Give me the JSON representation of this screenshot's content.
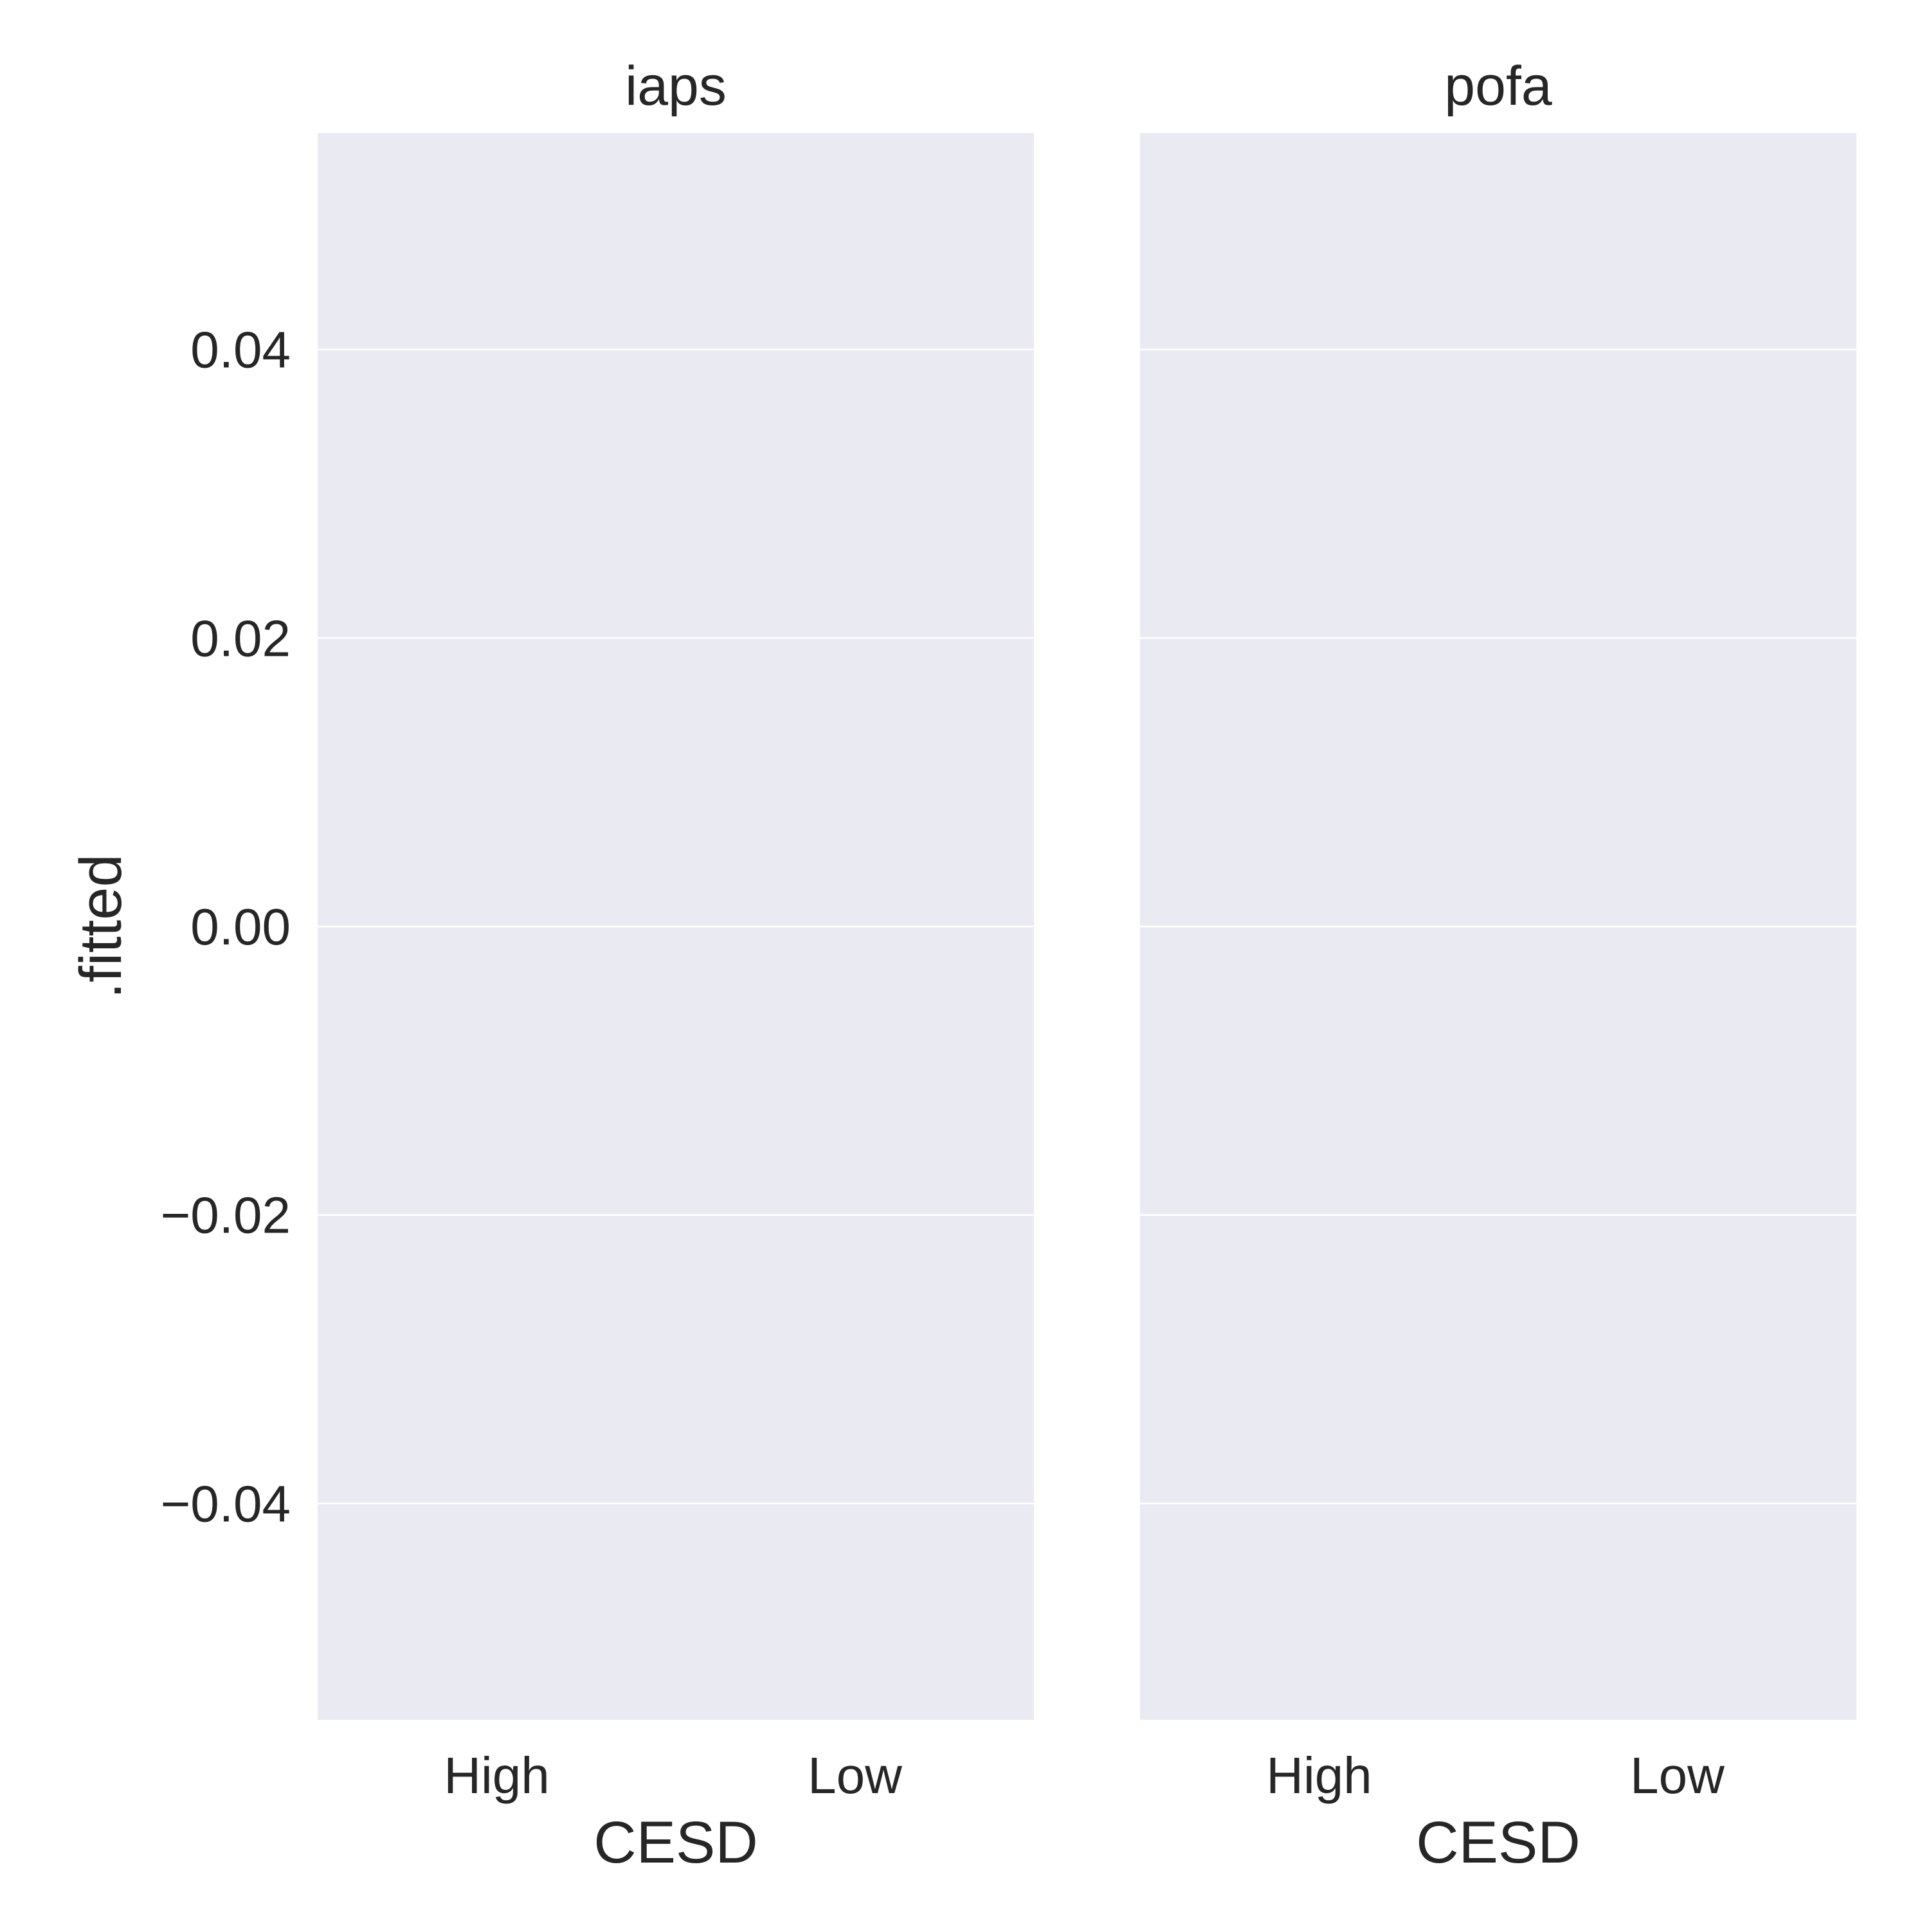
{
  "chart_data": {
    "type": "bar",
    "facet_variable": "",
    "x_variable": "CESD",
    "y_variable": ".fitted",
    "ylabel": ".fitted",
    "ylim": [
      -0.055,
      0.055
    ],
    "yticks": [
      0.04,
      0.02,
      0.0,
      -0.02,
      -0.04
    ],
    "ytick_labels": [
      "0.04",
      "0.02",
      "0.00",
      "−0.02",
      "−0.04"
    ],
    "grid": true,
    "colors": {
      "panel_background": "#eaeaf2",
      "gridline": "#ffffff",
      "text": "#262626"
    },
    "panels": [
      {
        "title": "iaps",
        "xlabel": "CESD",
        "categories": [
          "High",
          "Low"
        ],
        "values": [
          null,
          null
        ]
      },
      {
        "title": "pofa",
        "xlabel": "CESD",
        "categories": [
          "High",
          "Low"
        ],
        "values": [
          null,
          null
        ]
      }
    ]
  }
}
